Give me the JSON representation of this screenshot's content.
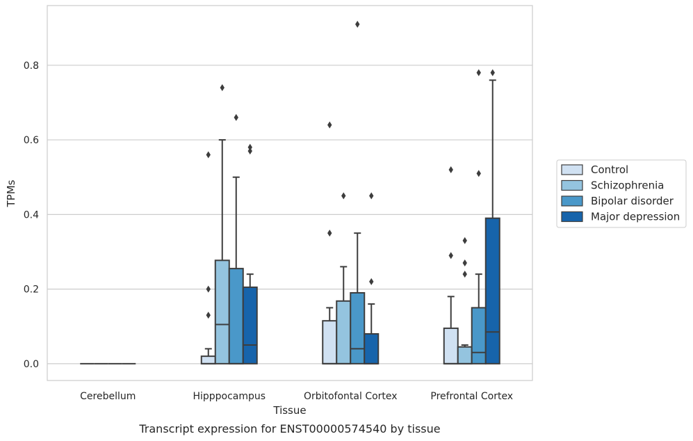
{
  "chart_data": {
    "type": "box",
    "title": "",
    "caption": "Transcript expression for ENST00000574540 by tissue",
    "xlabel": "Tissue",
    "ylabel": "TPMs",
    "ylim": [
      -0.045,
      0.96
    ],
    "yticks": [
      0.0,
      0.2,
      0.4,
      0.6,
      0.8
    ],
    "ytick_labels": [
      "0.0",
      "0.2",
      "0.4",
      "0.6",
      "0.8"
    ],
    "grid": "horizontal",
    "legend_position": "right",
    "categories": [
      "Cerebellum",
      "Hipppocampus",
      "Orbitofontal Cortex",
      "Prefrontal Cortex"
    ],
    "series": [
      {
        "name": "Control",
        "color": "#d0e1f2",
        "boxes": [
          {
            "q1": 0,
            "median": 0,
            "q3": 0,
            "whisker_low": 0,
            "whisker_high": 0,
            "outliers": []
          },
          {
            "q1": 0,
            "median": 0,
            "q3": 0.02,
            "whisker_low": 0,
            "whisker_high": 0.04,
            "outliers": [
              0.13,
              0.2,
              0.56
            ]
          },
          {
            "q1": 0,
            "median": 0,
            "q3": 0.115,
            "whisker_low": 0,
            "whisker_high": 0.15,
            "outliers": [
              0.35,
              0.64
            ]
          },
          {
            "q1": 0,
            "median": 0,
            "q3": 0.095,
            "whisker_low": 0,
            "whisker_high": 0.18,
            "outliers": [
              0.29,
              0.52
            ]
          }
        ]
      },
      {
        "name": "Schizophrenia",
        "color": "#94c4df",
        "boxes": [
          {
            "q1": 0,
            "median": 0,
            "q3": 0,
            "whisker_low": 0,
            "whisker_high": 0,
            "outliers": []
          },
          {
            "q1": 0,
            "median": 0.105,
            "q3": 0.277,
            "whisker_low": 0,
            "whisker_high": 0.6,
            "outliers": [
              0.74
            ]
          },
          {
            "q1": 0,
            "median": 0,
            "q3": 0.168,
            "whisker_low": 0,
            "whisker_high": 0.26,
            "outliers": [
              0.45
            ]
          },
          {
            "q1": 0,
            "median": 0,
            "q3": 0.045,
            "whisker_low": 0,
            "whisker_high": 0.05,
            "outliers": [
              0.24,
              0.27,
              0.33
            ]
          }
        ]
      },
      {
        "name": "Bipolar disorder",
        "color": "#4a98c9",
        "boxes": [
          {
            "q1": 0,
            "median": 0,
            "q3": 0,
            "whisker_low": 0,
            "whisker_high": 0,
            "outliers": []
          },
          {
            "q1": 0,
            "median": 0,
            "q3": 0.255,
            "whisker_low": 0,
            "whisker_high": 0.5,
            "outliers": [
              0.66
            ]
          },
          {
            "q1": 0,
            "median": 0.04,
            "q3": 0.19,
            "whisker_low": 0,
            "whisker_high": 0.35,
            "outliers": [
              0.91
            ]
          },
          {
            "q1": 0,
            "median": 0.03,
            "q3": 0.15,
            "whisker_low": 0,
            "whisker_high": 0.24,
            "outliers": [
              0.51,
              0.78
            ]
          }
        ]
      },
      {
        "name": "Major depression",
        "color": "#1764ab",
        "boxes": [
          {
            "q1": 0,
            "median": 0,
            "q3": 0,
            "whisker_low": 0,
            "whisker_high": 0,
            "outliers": []
          },
          {
            "q1": 0,
            "median": 0.05,
            "q3": 0.205,
            "whisker_low": 0,
            "whisker_high": 0.24,
            "outliers": [
              0.57,
              0.58
            ]
          },
          {
            "q1": 0,
            "median": 0,
            "q3": 0.08,
            "whisker_low": 0,
            "whisker_high": 0.16,
            "outliers": [
              0.22,
              0.45
            ]
          },
          {
            "q1": 0,
            "median": 0.085,
            "q3": 0.39,
            "whisker_low": 0,
            "whisker_high": 0.76,
            "outliers": [
              0.78
            ]
          }
        ]
      }
    ]
  }
}
